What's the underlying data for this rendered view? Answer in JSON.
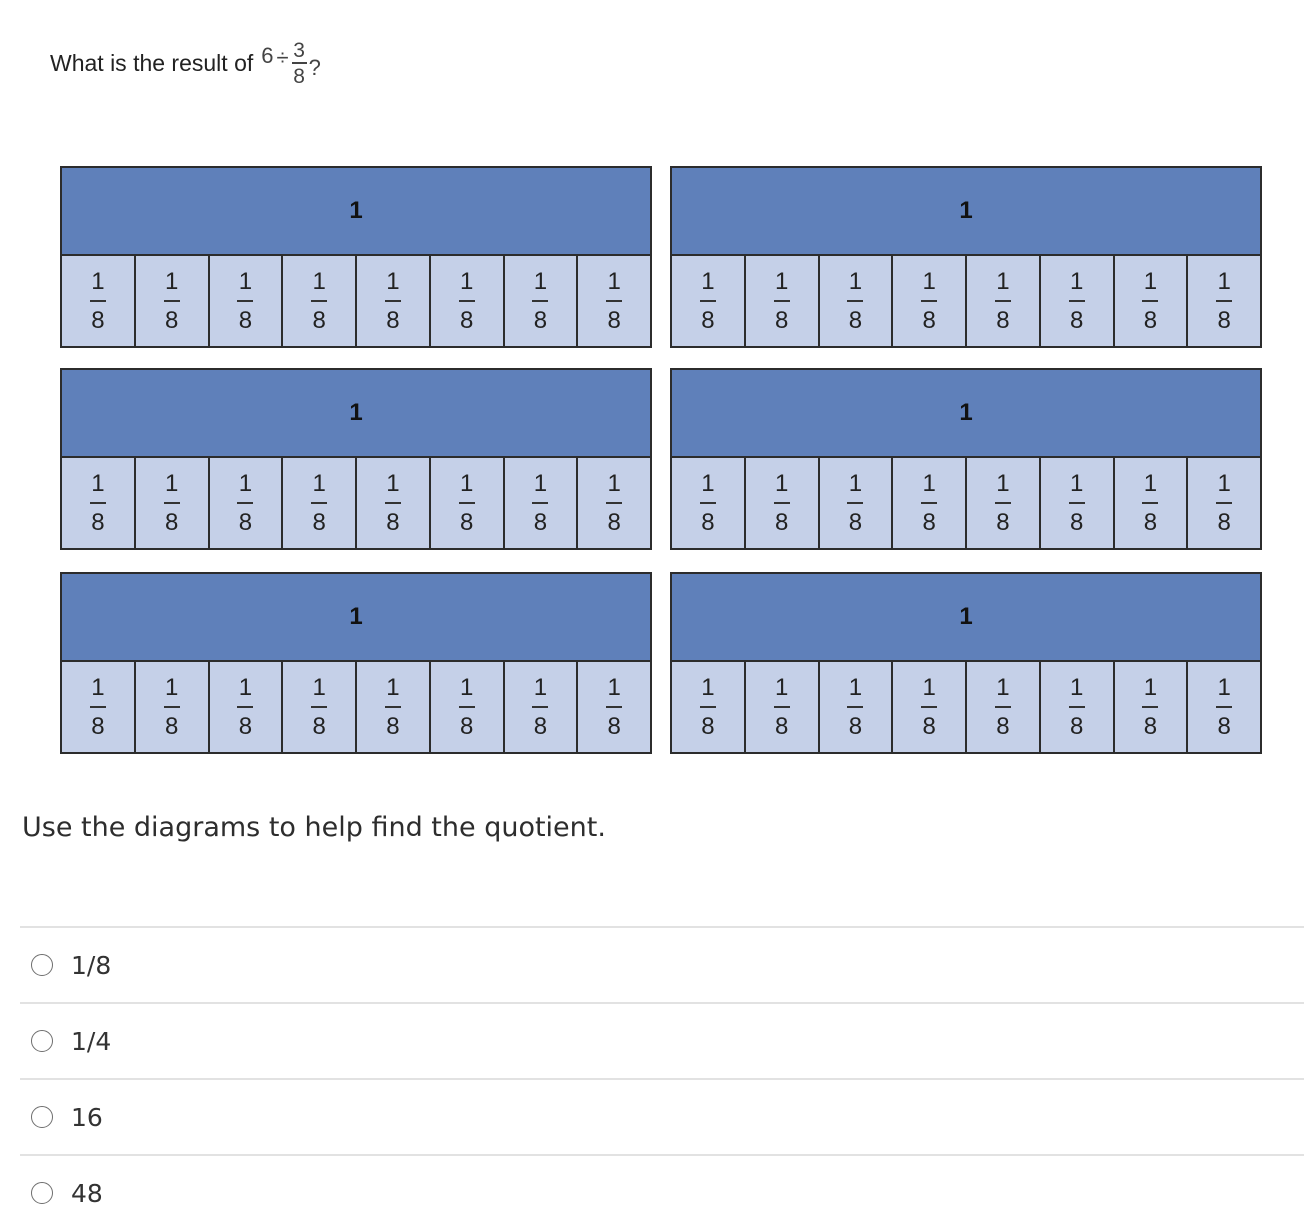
{
  "question": {
    "prefix": "What is the result of",
    "whole": "6",
    "operator": "÷",
    "numerator": "3",
    "denominator": "8",
    "suffix": "?"
  },
  "diagram": {
    "whole_label": "1",
    "part_numerator": "1",
    "part_denominator": "8",
    "colors": {
      "whole_fill": "#5f80ba",
      "part_fill": "#c5d0e8",
      "border": "#2c2c2c"
    }
  },
  "instruction": "Use the diagrams to help find the quotient.",
  "choices": [
    {
      "label": "1/8"
    },
    {
      "label": "1/4"
    },
    {
      "label": "16"
    },
    {
      "label": "48"
    }
  ]
}
